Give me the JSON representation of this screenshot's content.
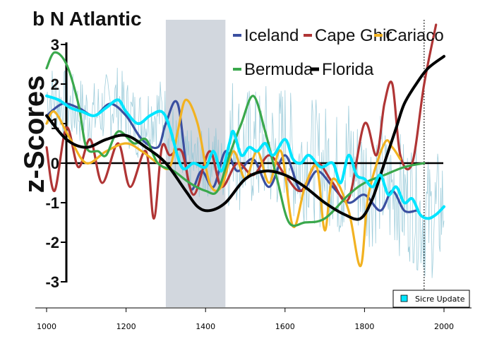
{
  "chart_data": {
    "type": "line",
    "title": "b N Atlantic",
    "ylabel": "z-Scores",
    "xlabel": "",
    "xlim": [
      1000,
      2000
    ],
    "ylim": [
      -3,
      3
    ],
    "x_ticks": [
      "1000",
      "1200",
      "1400",
      "1600",
      "1800",
      "2000"
    ],
    "y_ticks": [
      "3",
      "2",
      "1",
      "0",
      "-1",
      "-2",
      "-3"
    ],
    "shaded_period": [
      1300,
      1450
    ],
    "reference_year": 1950,
    "legend_update_label": "Sicre Update",
    "series": [
      {
        "name": "Iceland",
        "color": "#3a4fa0",
        "x": [
          1000,
          1040,
          1080,
          1120,
          1160,
          1200,
          1240,
          1280,
          1300,
          1330,
          1360,
          1390,
          1420,
          1450,
          1480,
          1520,
          1560,
          1600,
          1640,
          1680,
          1720,
          1760,
          1800,
          1840,
          1870,
          1900,
          1930
        ],
        "y": [
          1.2,
          1.5,
          1.4,
          1.2,
          1.5,
          1.2,
          0.6,
          0.4,
          1.0,
          1.5,
          -0.6,
          -0.2,
          -0.6,
          0.3,
          -0.2,
          0.1,
          -0.6,
          0.2,
          -0.7,
          -0.2,
          -0.6,
          -1.0,
          -0.8,
          -1.2,
          -0.7,
          -1.2,
          -1.2
        ]
      },
      {
        "name": "Cape Ghir",
        "color": "#b03535",
        "x": [
          1000,
          1020,
          1050,
          1080,
          1110,
          1140,
          1180,
          1210,
          1250,
          1270,
          1290,
          1310,
          1340,
          1370,
          1410,
          1440,
          1480,
          1520,
          1560,
          1600,
          1640,
          1680,
          1720,
          1760,
          1800,
          1830,
          1850,
          1870,
          1890,
          1920,
          1950,
          1980
        ],
        "y": [
          0.4,
          -0.7,
          0.9,
          -0.1,
          0.6,
          -0.5,
          0.5,
          -0.6,
          0.3,
          -1.4,
          0.4,
          0.2,
          0.3,
          -0.8,
          0.3,
          -0.6,
          0.0,
          -0.3,
          0.2,
          -0.3,
          -0.7,
          0.0,
          -0.5,
          -0.9,
          1.0,
          0.2,
          1.5,
          2.0,
          0.2,
          0.0,
          2.0,
          3.5
        ]
      },
      {
        "name": "Cariaco",
        "color": "#f2b221",
        "x": [
          1000,
          1020,
          1060,
          1100,
          1150,
          1200,
          1240,
          1280,
          1310,
          1330,
          1350,
          1380,
          1410,
          1440,
          1470,
          1500,
          1530,
          1560,
          1590,
          1620,
          1650,
          1680,
          1700,
          1720,
          1760,
          1790,
          1810,
          1850,
          1870,
          1890
        ],
        "y": [
          1.0,
          1.3,
          0.6,
          0.0,
          0.3,
          0.5,
          0.3,
          0.0,
          -0.1,
          0.8,
          1.6,
          1.0,
          -0.5,
          -0.6,
          0.3,
          -0.4,
          0.3,
          -0.5,
          0.3,
          -1.6,
          -0.6,
          -0.1,
          -1.7,
          -0.4,
          -1.2,
          -2.6,
          -0.8,
          0.5,
          0.4,
          0.1
        ]
      },
      {
        "name": "Bermuda",
        "color": "#3aa84c",
        "x": [
          1000,
          1020,
          1050,
          1080,
          1100,
          1130,
          1150,
          1180,
          1220,
          1250,
          1280,
          1320,
          1360,
          1400,
          1430,
          1460,
          1490,
          1520,
          1550,
          1580,
          1610,
          1650,
          1700,
          1760,
          1800,
          1850,
          1900,
          1950
        ],
        "y": [
          2.4,
          2.8,
          2.5,
          1.5,
          0.4,
          0.3,
          0.2,
          0.8,
          0.5,
          0.6,
          0.0,
          -0.2,
          -0.5,
          -0.7,
          -0.7,
          0.2,
          1.0,
          1.7,
          0.8,
          -0.4,
          -1.5,
          -1.5,
          -1.4,
          -0.8,
          -0.5,
          -0.3,
          -0.1,
          0.0
        ]
      },
      {
        "name": "Florida",
        "color": "#000000",
        "x": [
          1000,
          1050,
          1100,
          1150,
          1200,
          1250,
          1300,
          1350,
          1380,
          1410,
          1450,
          1500,
          1550,
          1600,
          1650,
          1700,
          1750,
          1790,
          1820,
          1850,
          1880,
          1900,
          1930,
          1960,
          2000
        ],
        "y": [
          1.2,
          0.6,
          0.4,
          0.6,
          0.7,
          0.4,
          0.0,
          -0.7,
          -1.1,
          -1.2,
          -1.0,
          -0.4,
          -0.2,
          -0.3,
          -0.6,
          -1.0,
          -1.3,
          -1.4,
          -0.9,
          0.0,
          0.9,
          1.5,
          2.0,
          2.4,
          2.7
        ]
      },
      {
        "name": "Sicre Update",
        "color": "#00e5ff",
        "x": [
          1000,
          1030,
          1060,
          1090,
          1120,
          1150,
          1180,
          1200,
          1230,
          1260,
          1290,
          1310,
          1340,
          1370,
          1400,
          1420,
          1440,
          1460,
          1470,
          1490,
          1510,
          1530,
          1550,
          1570,
          1600,
          1620,
          1640,
          1660,
          1690,
          1720,
          1740,
          1760,
          1780,
          1800,
          1820,
          1840,
          1860,
          1880,
          1900,
          1920,
          1940,
          1960,
          1980,
          2000
        ],
        "y": [
          1.7,
          1.6,
          1.4,
          1.3,
          1.2,
          1.4,
          1.6,
          1.3,
          1.0,
          1.2,
          1.3,
          0.9,
          -0.1,
          0.0,
          -0.1,
          0.3,
          -0.2,
          0.5,
          0.8,
          0.2,
          0.4,
          0.3,
          0.5,
          0.2,
          0.6,
          0.1,
          0.0,
          0.2,
          -0.1,
          0.0,
          -0.5,
          0.2,
          -0.3,
          -0.4,
          -0.6,
          -0.3,
          -0.8,
          -0.6,
          -1.0,
          -0.9,
          -1.3,
          -1.4,
          -1.3,
          -1.1
        ]
      }
    ]
  }
}
